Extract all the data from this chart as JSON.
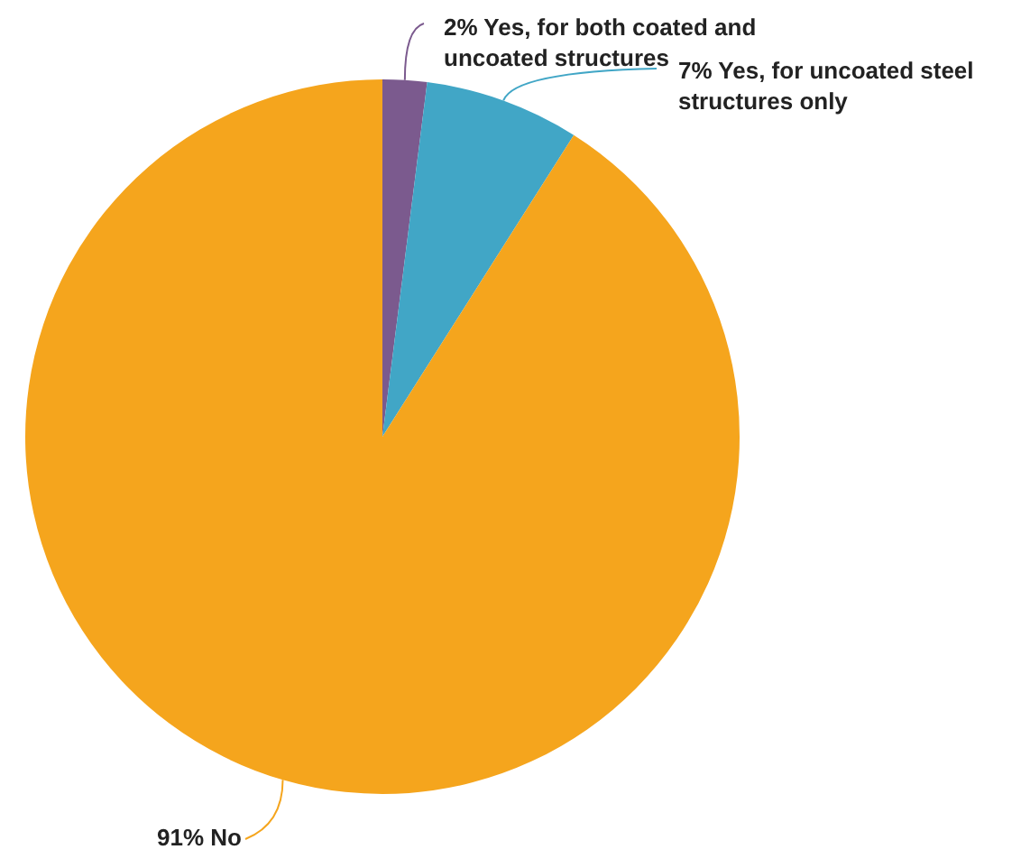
{
  "chart_data": {
    "type": "pie",
    "categories": [
      "Yes, for both coated and uncoated structures",
      "Yes, for uncoated steel structures only",
      "No"
    ],
    "values": [
      2,
      7,
      91
    ],
    "value_labels": [
      "2%",
      "7%",
      "91%"
    ],
    "colors": [
      "#7b5a8e",
      "#41a6c6",
      "#f5a51d"
    ],
    "legend": false
  }
}
